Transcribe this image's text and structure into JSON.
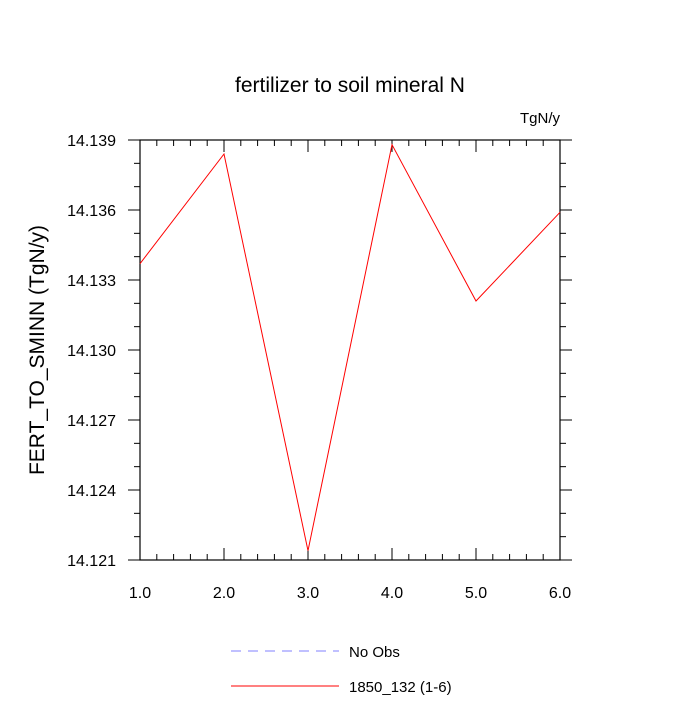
{
  "chart_data": {
    "type": "line",
    "title": "fertilizer to soil mineral N",
    "units_label": "TgN/y",
    "xlabel": "",
    "ylabel": "FERT_TO_SMINN  (TgN/y)",
    "xlim": [
      1.0,
      6.0
    ],
    "ylim": [
      14.121,
      14.139
    ],
    "xticks": [
      1.0,
      2.0,
      3.0,
      4.0,
      5.0,
      6.0
    ],
    "xtick_labels": [
      "1.0",
      "2.0",
      "3.0",
      "4.0",
      "5.0",
      "6.0"
    ],
    "yticks": [
      14.121,
      14.124,
      14.127,
      14.13,
      14.133,
      14.136,
      14.139
    ],
    "ytick_labels": [
      "14.121",
      "14.124",
      "14.127",
      "14.130",
      "14.133",
      "14.136",
      "14.139"
    ],
    "grid": false,
    "legend_position": "bottom-center",
    "series": [
      {
        "name": "1850_132 (1-6)",
        "color": "#ff0000",
        "dash": "solid",
        "x": [
          1.0,
          2.0,
          3.0,
          4.0,
          5.0,
          6.0
        ],
        "y": [
          14.1337,
          14.1384,
          14.1214,
          14.1388,
          14.1321,
          14.1359
        ]
      }
    ],
    "legend": [
      {
        "label": "No Obs",
        "color": "#8080ff",
        "dash": "dashed"
      },
      {
        "label": "1850_132 (1-6)",
        "color": "#ff0000",
        "dash": "solid"
      }
    ]
  }
}
